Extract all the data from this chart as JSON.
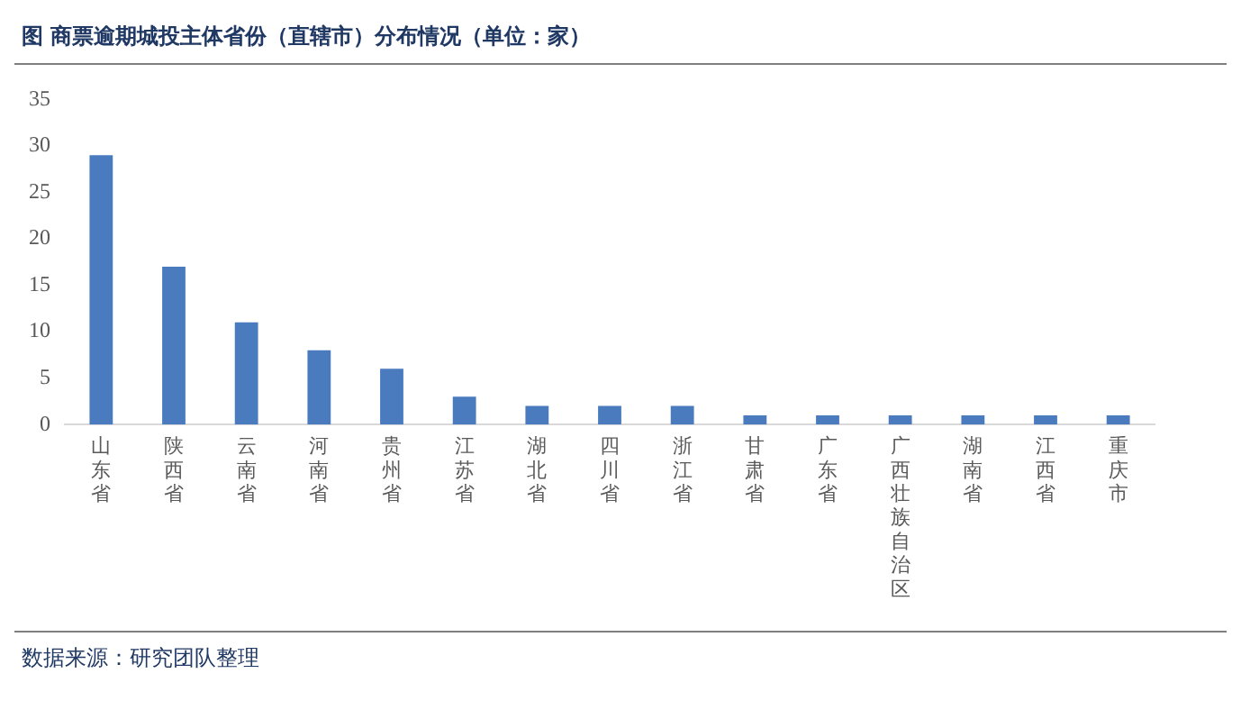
{
  "chart_data": {
    "type": "bar",
    "title": "图  商票逾期城投主体省份（直辖市）分布情况（单位：家）",
    "categories": [
      "山东省",
      "陕西省",
      "云南省",
      "河南省",
      "贵州省",
      "江苏省",
      "湖北省",
      "四川省",
      "浙江省",
      "甘肃省",
      "广东省",
      "广西壮族自治区",
      "湖南省",
      "江西省",
      "重庆市"
    ],
    "values": [
      29,
      17,
      11,
      8,
      6,
      3,
      2,
      2,
      2,
      1,
      1,
      1,
      1,
      1,
      1
    ],
    "color": "#4a7bbf",
    "ylim": [
      0,
      35
    ],
    "yticks": [
      0,
      5,
      10,
      15,
      20,
      25,
      30,
      35
    ],
    "grid": false,
    "legend": false,
    "annotations": [
      "数据来源：研究团队整理"
    ]
  }
}
